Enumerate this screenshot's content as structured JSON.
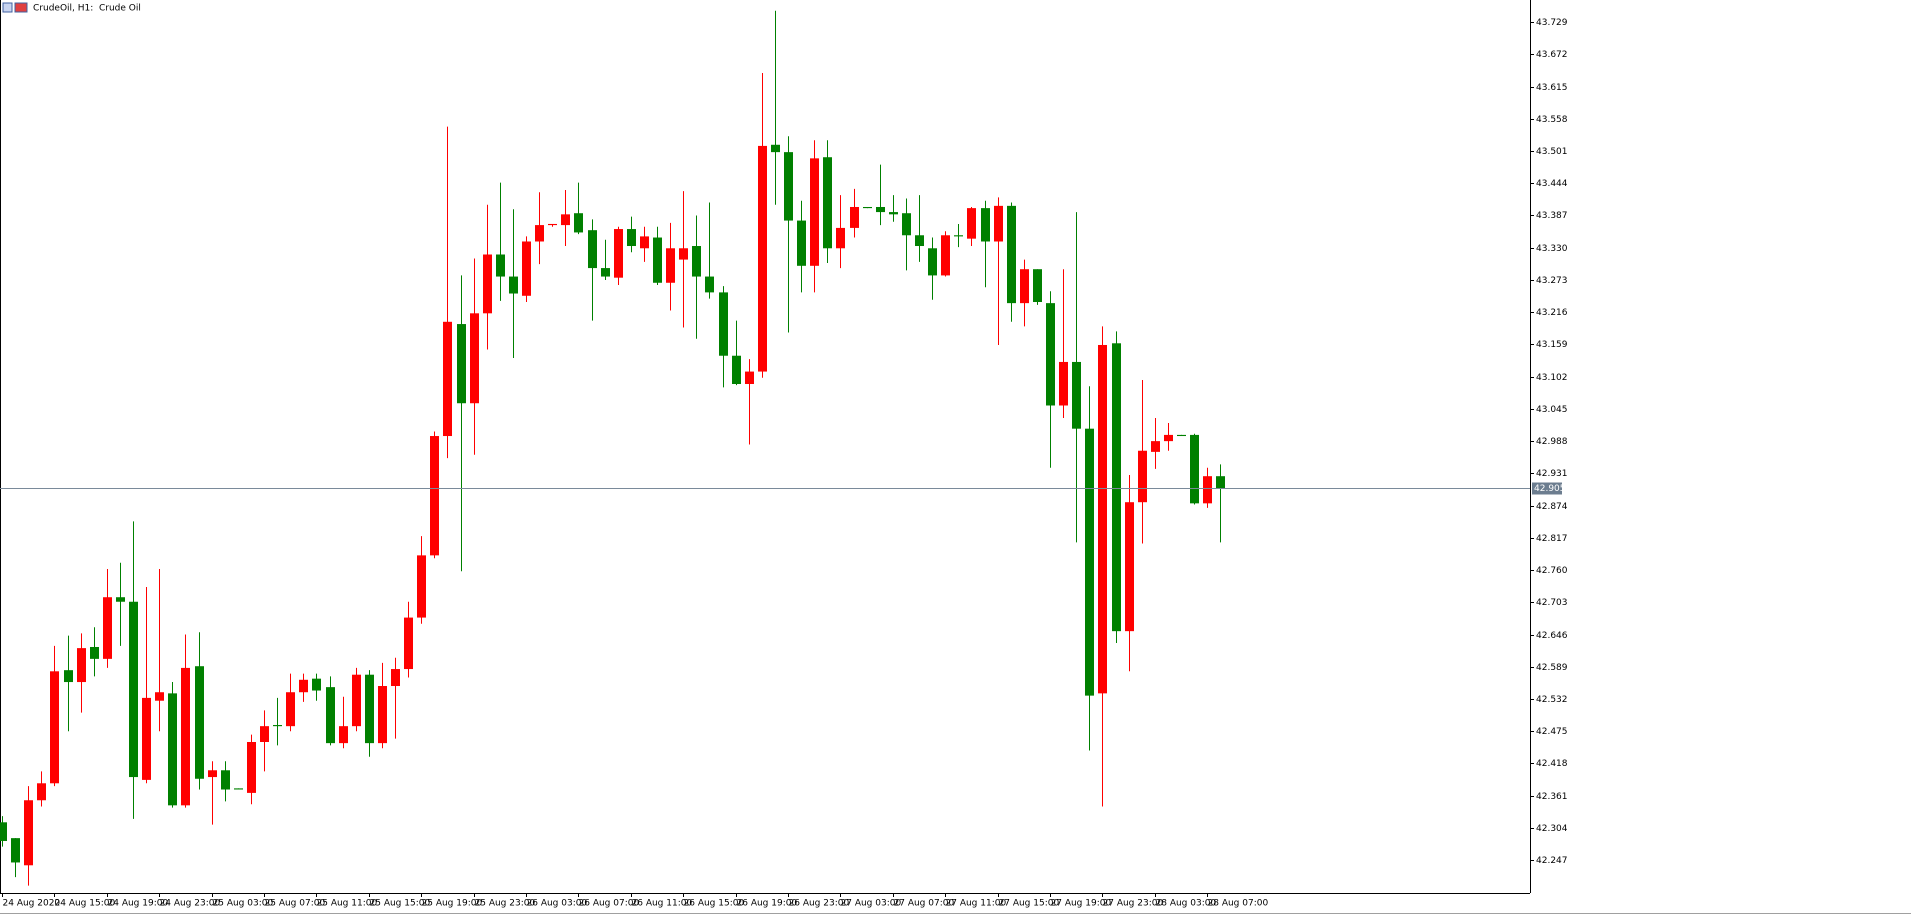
{
  "chart_data": {
    "type": "candlestick",
    "title": "CrudeOil, H1:  Crude Oil",
    "categories": [
      "24 Aug 2020",
      null,
      null,
      null,
      "24 Aug 15:00",
      null,
      null,
      null,
      "24 Aug 19:00",
      null,
      null,
      null,
      "24 Aug 23:00",
      null,
      null,
      null,
      "25 Aug 03:00",
      null,
      null,
      null,
      "25 Aug 07:00",
      null,
      null,
      null,
      "25 Aug 11:00",
      null,
      null,
      null,
      "25 Aug 15:00",
      null,
      null,
      null,
      "25 Aug 19:00",
      null,
      null,
      null,
      "25 Aug 23:00",
      null,
      null,
      null,
      "26 Aug 03:00",
      null,
      null,
      null,
      "26 Aug 07:00",
      null,
      null,
      null,
      "26 Aug 11:00",
      null,
      null,
      null,
      "26 Aug 15:00",
      null,
      null,
      null,
      "26 Aug 19:00",
      null,
      null,
      null,
      "26 Aug 23:00",
      null,
      null,
      null,
      "27 Aug 03:00",
      null,
      null,
      null,
      "27 Aug 07:00",
      null,
      null,
      null,
      "27 Aug 11:00",
      null,
      null,
      null,
      "27 Aug 15:00",
      null,
      null,
      null,
      "27 Aug 19:00",
      null,
      null,
      null,
      "27 Aug 23:00",
      null,
      null,
      null,
      "28 Aug 03:00",
      null,
      null,
      null,
      "28 Aug 07:00",
      null
    ],
    "open": [
      42.314,
      42.286,
      42.238,
      42.353,
      42.383,
      42.583,
      42.562,
      42.624,
      42.603,
      42.712,
      42.704,
      42.389,
      42.529,
      42.542,
      42.344,
      42.59,
      42.394,
      42.406,
      42.374,
      42.366,
      42.456,
      42.486,
      42.484,
      42.544,
      42.568,
      42.553,
      42.454,
      42.484,
      42.575,
      42.454,
      42.555,
      42.585,
      42.676,
      42.786,
      42.997,
      43.195,
      43.055,
      43.214,
      43.318,
      43.279,
      43.245,
      43.341,
      43.37,
      43.37,
      43.391,
      43.361,
      43.294,
      43.277,
      43.363,
      43.329,
      43.348,
      43.268,
      43.309,
      43.333,
      43.279,
      43.251,
      43.139,
      43.089,
      43.111,
      43.512,
      43.499,
      43.378,
      43.298,
      43.49,
      43.329,
      43.365,
      43.402,
      43.402,
      43.393,
      43.391,
      43.352,
      43.329,
      43.281,
      43.352,
      43.346,
      43.4,
      43.341,
      43.404,
      43.232,
      43.292,
      43.232,
      43.051,
      43.128,
      43.01,
      42.542,
      43.161,
      42.652,
      42.88,
      42.969,
      42.988,
      42.999,
      42.999,
      42.878,
      42.926
    ],
    "high": [
      42.325,
      42.286,
      42.378,
      42.404,
      42.626,
      42.644,
      42.648,
      42.659,
      42.762,
      42.773,
      42.846,
      42.73,
      42.762,
      42.562,
      42.646,
      42.65,
      42.422,
      42.422,
      42.374,
      42.469,
      42.512,
      42.534,
      42.577,
      42.577,
      42.577,
      42.572,
      42.536,
      42.587,
      42.583,
      42.596,
      42.605,
      42.704,
      42.82,
      43.005,
      43.544,
      43.281,
      43.311,
      43.406,
      43.445,
      43.398,
      43.35,
      43.428,
      43.372,
      43.432,
      43.445,
      43.38,
      43.344,
      43.367,
      43.385,
      43.367,
      43.367,
      43.374,
      43.43,
      43.387,
      43.41,
      43.262,
      43.201,
      43.133,
      43.639,
      43.749,
      43.527,
      43.413,
      43.52,
      43.52,
      43.423,
      43.434,
      43.402,
      43.477,
      43.423,
      43.417,
      43.423,
      43.348,
      43.359,
      43.372,
      43.402,
      43.413,
      43.419,
      43.41,
      43.309,
      43.292,
      43.253,
      43.292,
      43.393,
      43.085,
      43.191,
      43.182,
      42.928,
      43.096,
      43.029,
      43.02,
      42.999,
      43.001,
      42.941,
      42.947
    ],
    "low": [
      42.271,
      42.217,
      42.202,
      42.342,
      42.378,
      42.475,
      42.508,
      42.572,
      42.587,
      42.626,
      42.32,
      42.383,
      42.475,
      42.34,
      42.34,
      42.372,
      42.31,
      42.351,
      42.372,
      42.346,
      42.404,
      42.45,
      42.475,
      42.527,
      42.529,
      42.45,
      42.445,
      42.475,
      42.43,
      42.445,
      42.462,
      42.57,
      42.665,
      42.781,
      42.958,
      42.758,
      42.964,
      43.15,
      43.236,
      43.135,
      43.234,
      43.301,
      43.367,
      43.333,
      43.354,
      43.201,
      43.273,
      43.264,
      43.322,
      43.305,
      43.264,
      43.219,
      43.189,
      43.169,
      43.24,
      43.083,
      43.087,
      42.982,
      43.1,
      43.406,
      43.18,
      43.251,
      43.251,
      43.303,
      43.294,
      43.348,
      43.4,
      43.37,
      43.376,
      43.29,
      43.305,
      43.238,
      43.279,
      43.331,
      43.333,
      43.26,
      43.158,
      43.199,
      43.191,
      43.229,
      42.941,
      43.029,
      42.809,
      42.441,
      42.342,
      42.631,
      42.581,
      42.807,
      42.939,
      42.971,
      42.997,
      42.876,
      42.87,
      42.809
    ],
    "close": [
      42.281,
      42.243,
      42.353,
      42.383,
      42.581,
      42.562,
      42.622,
      42.603,
      42.712,
      42.704,
      42.394,
      42.534,
      42.544,
      42.344,
      42.587,
      42.391,
      42.406,
      42.372,
      42.372,
      42.456,
      42.484,
      42.484,
      42.544,
      42.566,
      42.547,
      42.454,
      42.484,
      42.575,
      42.454,
      42.555,
      42.585,
      42.676,
      42.786,
      42.997,
      43.199,
      43.055,
      43.214,
      43.318,
      43.279,
      43.249,
      43.341,
      43.37,
      43.372,
      43.389,
      43.357,
      43.294,
      43.279,
      43.363,
      43.333,
      43.35,
      43.268,
      43.329,
      43.329,
      43.279,
      43.251,
      43.139,
      43.089,
      43.111,
      43.51,
      43.499,
      43.378,
      43.298,
      43.488,
      43.329,
      43.365,
      43.402,
      43.4,
      43.393,
      43.389,
      43.352,
      43.333,
      43.281,
      43.352,
      43.35,
      43.4,
      43.341,
      43.404,
      43.232,
      43.292,
      43.234,
      43.051,
      43.128,
      43.01,
      42.538,
      43.158,
      42.652,
      42.88,
      42.971,
      42.988,
      42.999,
      42.997,
      42.878,
      42.926,
      42.905
    ],
    "up_color": "#ff0000",
    "down_color": "#008000",
    "current_price": 42.905,
    "ylim": [
      42.189,
      43.768
    ],
    "yticks": [
      43.729,
      43.672,
      43.615,
      43.558,
      43.501,
      43.444,
      43.387,
      {
        "value": 43.33,
        "label": "43.330"
      },
      43.273,
      43.216,
      43.159,
      43.102,
      43.045,
      42.988,
      42.931,
      42.874,
      42.817,
      {
        "value": 42.76,
        "label": "42.760"
      },
      42.703,
      42.646,
      42.589,
      42.532,
      42.475,
      42.418,
      42.361,
      42.304,
      42.247
    ]
  }
}
